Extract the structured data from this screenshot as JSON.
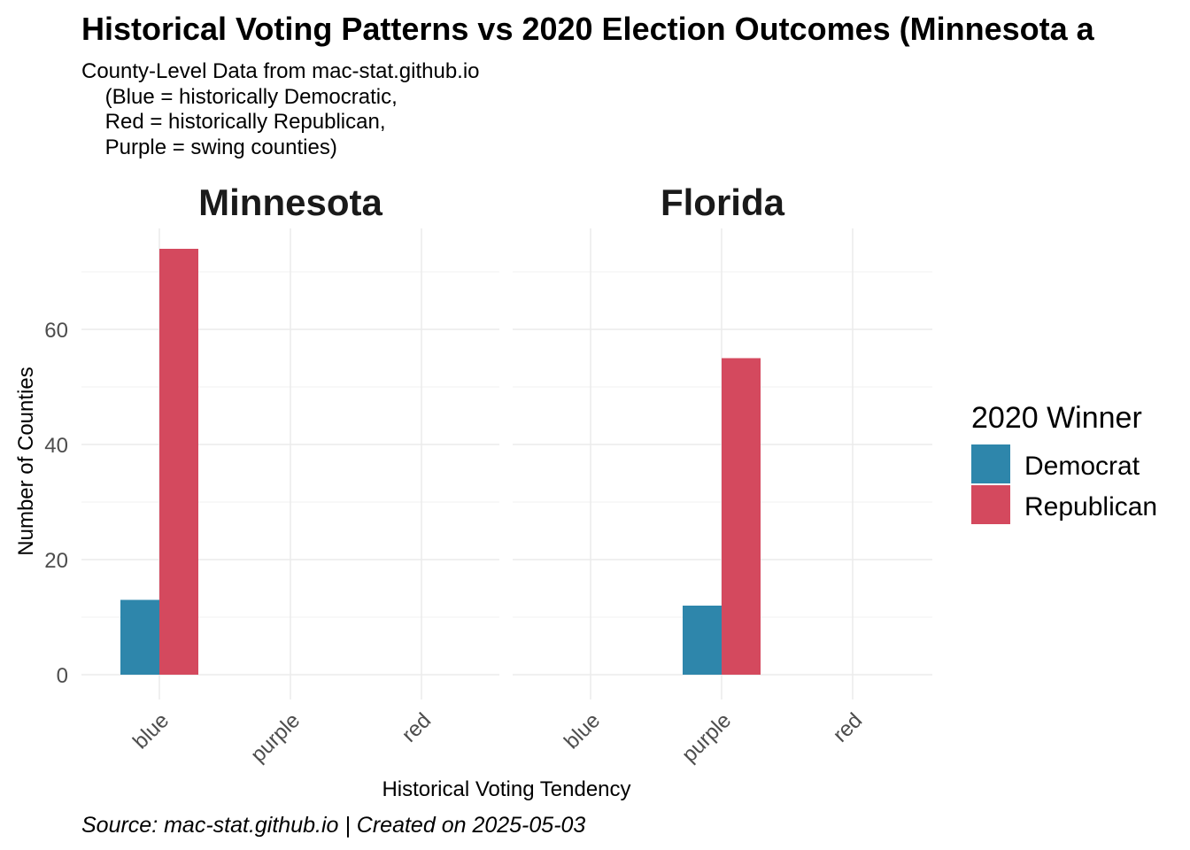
{
  "chart_data": {
    "type": "bar",
    "title": "Historical Voting Patterns vs 2020 Election Outcomes (Minnesota a",
    "subtitle_lines": [
      "County-Level Data from mac-stat.github.io",
      "    (Blue = historically Democratic,",
      "    Red = historically Republican,",
      "    Purple = swing counties)"
    ],
    "xlabel": "Historical Voting Tendency",
    "ylabel": "Number of Counties",
    "caption": "Source: mac-stat.github.io | Created on 2025-05-03",
    "categories": [
      "blue",
      "purple",
      "red"
    ],
    "ylim": [
      0,
      78
    ],
    "y_ticks": [
      0,
      20,
      40,
      60
    ],
    "grid": true,
    "legend": {
      "title": "2020 Winner",
      "position": "right",
      "entries": [
        {
          "name": "Democrat",
          "color": "#2E86AB"
        },
        {
          "name": "Republican",
          "color": "#D4495E"
        }
      ]
    },
    "facets": [
      {
        "name": "Minnesota",
        "series": [
          {
            "name": "Democrat",
            "values": [
              13,
              0,
              0
            ]
          },
          {
            "name": "Republican",
            "values": [
              74,
              0,
              0
            ]
          }
        ]
      },
      {
        "name": "Florida",
        "series": [
          {
            "name": "Democrat",
            "values": [
              0,
              12,
              0
            ]
          },
          {
            "name": "Republican",
            "values": [
              0,
              55,
              0
            ]
          }
        ]
      }
    ]
  }
}
